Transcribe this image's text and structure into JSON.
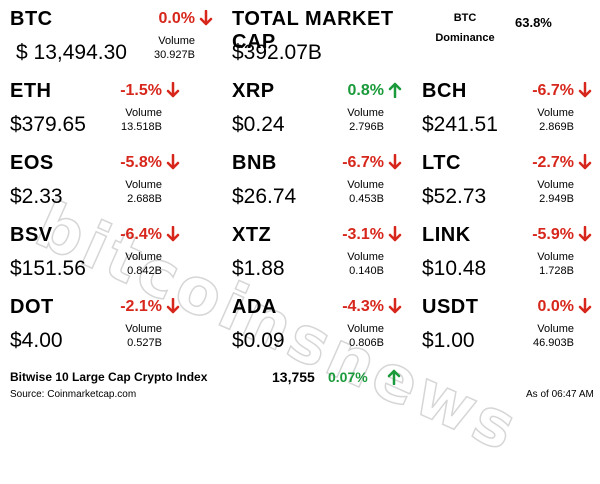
{
  "watermark": "bitcoinsnews",
  "colors": {
    "down": "#d7261b",
    "up": "#1a9a3a"
  },
  "btc": {
    "symbol": "BTC",
    "change": "0.0%",
    "direction": "down",
    "price": "$ 13,494.30",
    "volume_label": "Volume",
    "volume": "30.927B"
  },
  "market": {
    "title": "TOTAL MARKET CAP",
    "value": "$392.07B",
    "dominance_line1": "BTC",
    "dominance_line2": "Dominance",
    "dominance_value": "63.8%"
  },
  "coins": [
    {
      "symbol": "ETH",
      "change": "-1.5%",
      "direction": "down",
      "price": "$379.65",
      "volume_label": "Volume",
      "volume": "13.518B"
    },
    {
      "symbol": "XRP",
      "change": "0.8%",
      "direction": "up",
      "price": "$0.24",
      "volume_label": "Volume",
      "volume": "2.796B"
    },
    {
      "symbol": "BCH",
      "change": "-6.7%",
      "direction": "down",
      "price": "$241.51",
      "volume_label": "Volume",
      "volume": "2.869B"
    },
    {
      "symbol": "EOS",
      "change": "-5.8%",
      "direction": "down",
      "price": "$2.33",
      "volume_label": "Volume",
      "volume": "2.688B"
    },
    {
      "symbol": "BNB",
      "change": "-6.7%",
      "direction": "down",
      "price": "$26.74",
      "volume_label": "Volume",
      "volume": "0.453B"
    },
    {
      "symbol": "LTC",
      "change": "-2.7%",
      "direction": "down",
      "price": "$52.73",
      "volume_label": "Volume",
      "volume": "2.949B"
    },
    {
      "symbol": "BSV",
      "change": "-6.4%",
      "direction": "down",
      "price": "$151.56",
      "volume_label": "Volume",
      "volume": "0.842B"
    },
    {
      "symbol": "XTZ",
      "change": "-3.1%",
      "direction": "down",
      "price": "$1.88",
      "volume_label": "Volume",
      "volume": "0.140B"
    },
    {
      "symbol": "LINK",
      "change": "-5.9%",
      "direction": "down",
      "price": "$10.48",
      "volume_label": "Volume",
      "volume": "1.728B"
    },
    {
      "symbol": "DOT",
      "change": "-2.1%",
      "direction": "down",
      "price": "$4.00",
      "volume_label": "Volume",
      "volume": "0.527B"
    },
    {
      "symbol": "ADA",
      "change": "-4.3%",
      "direction": "down",
      "price": "$0.09",
      "volume_label": "Volume",
      "volume": "0.806B"
    },
    {
      "symbol": "USDT",
      "change": "0.0%",
      "direction": "down",
      "price": "$1.00",
      "volume_label": "Volume",
      "volume": "46.903B"
    }
  ],
  "index": {
    "name": "Bitwise 10 Large Cap Crypto Index",
    "value": "13,755",
    "change": "0.07%",
    "direction": "up"
  },
  "footer": {
    "source": "Source: Coinmarketcap.com",
    "as_of": "As of 06:47 AM"
  }
}
